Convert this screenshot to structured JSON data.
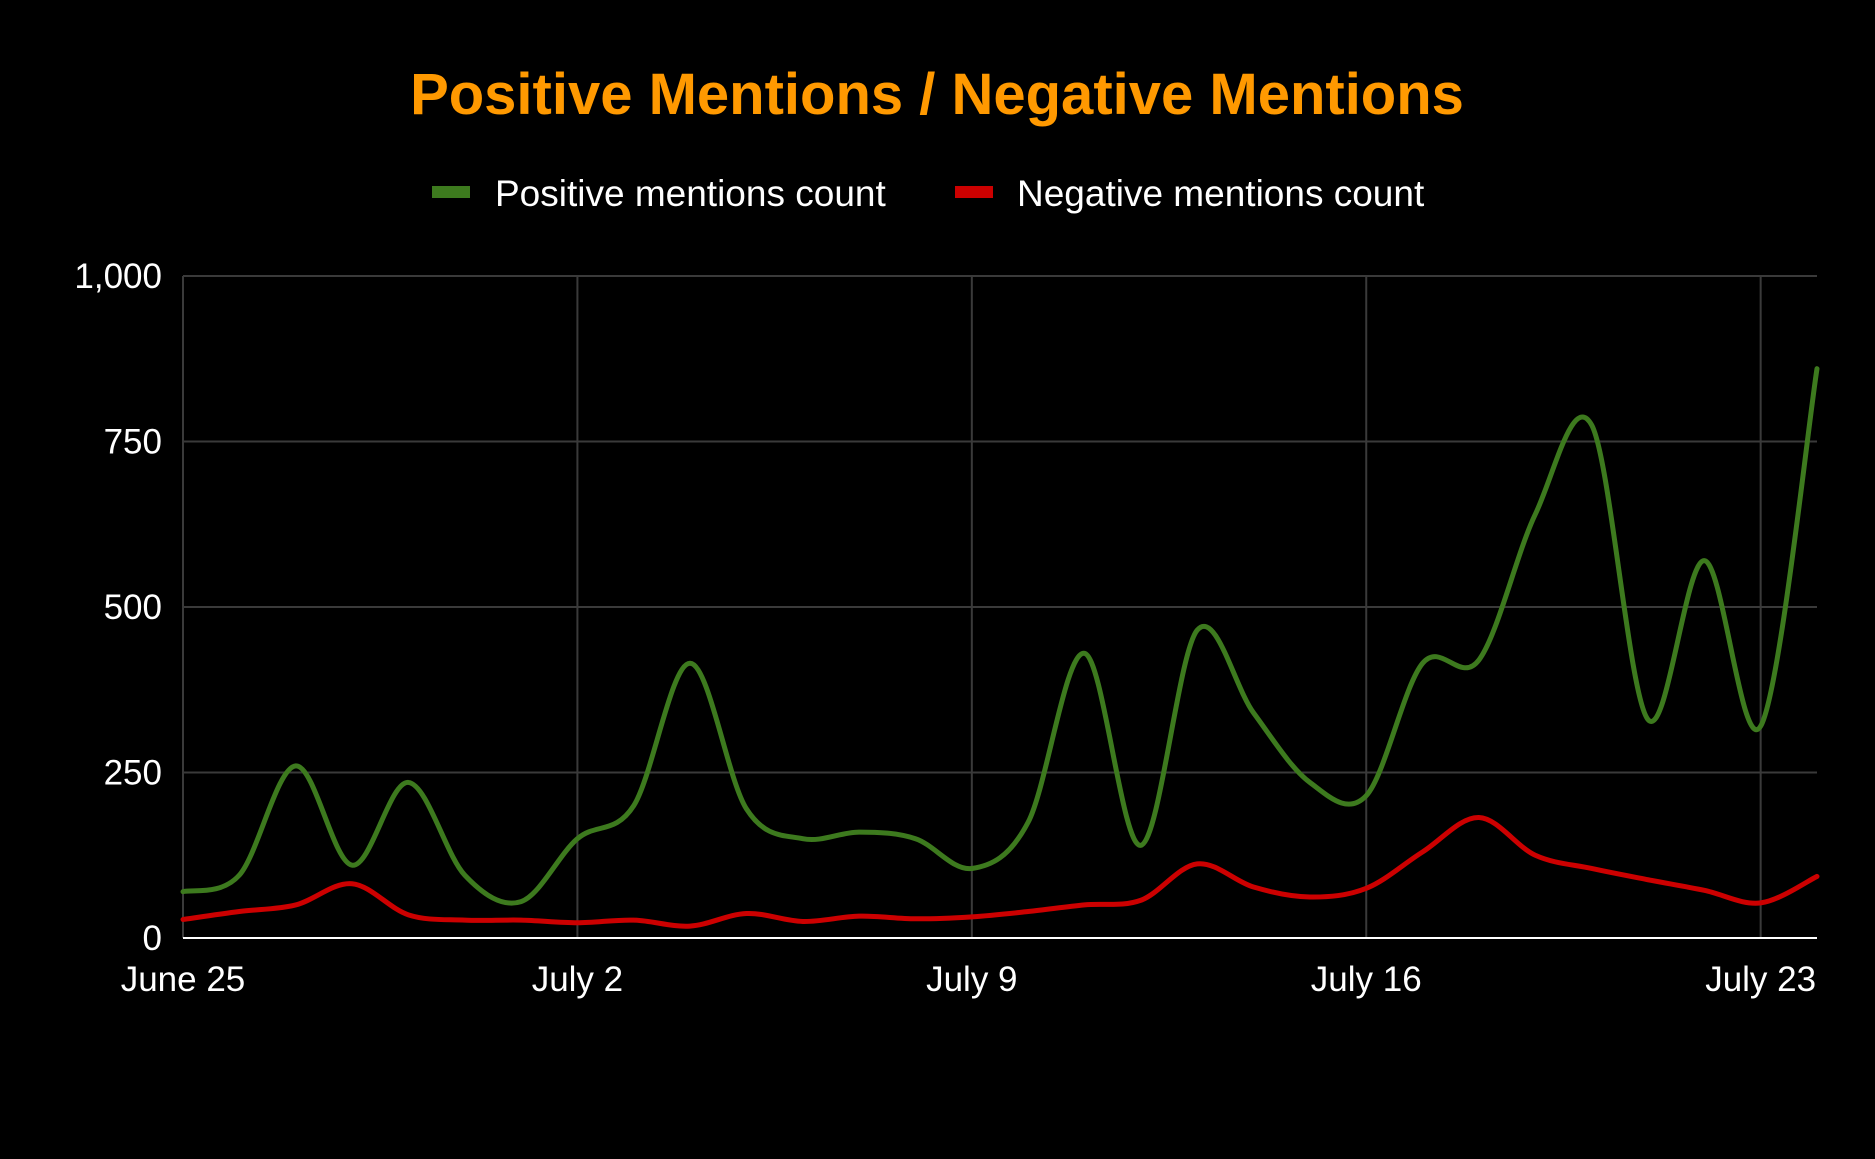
{
  "chart_data": {
    "type": "line",
    "title": "Positive Mentions / Negative Mentions",
    "xlabel": "",
    "ylabel": "",
    "x": [
      "2023-06-25",
      "2023-06-26",
      "2023-06-27",
      "2023-06-28",
      "2023-06-29",
      "2023-06-30",
      "2023-07-01",
      "2023-07-02",
      "2023-07-03",
      "2023-07-04",
      "2023-07-05",
      "2023-07-06",
      "2023-07-07",
      "2023-07-08",
      "2023-07-09",
      "2023-07-10",
      "2023-07-11",
      "2023-07-12",
      "2023-07-13",
      "2023-07-14",
      "2023-07-15",
      "2023-07-16",
      "2023-07-17",
      "2023-07-18",
      "2023-07-19",
      "2023-07-20",
      "2023-07-21",
      "2023-07-22",
      "2023-07-23",
      "2023-07-24"
    ],
    "xticks": [
      {
        "date": "2023-06-25",
        "label": "June 25"
      },
      {
        "date": "2023-07-02",
        "label": "July 2"
      },
      {
        "date": "2023-07-09",
        "label": "July 9"
      },
      {
        "date": "2023-07-16",
        "label": "July 16"
      },
      {
        "date": "2023-07-23",
        "label": "July 23"
      }
    ],
    "yticks": [
      {
        "value": 0,
        "label": "0"
      },
      {
        "value": 250,
        "label": "250"
      },
      {
        "value": 500,
        "label": "500"
      },
      {
        "value": 750,
        "label": "750"
      },
      {
        "value": 1000,
        "label": "1,000"
      }
    ],
    "ylim": [
      0,
      1000
    ],
    "grid": true,
    "legend_position": "top",
    "series": [
      {
        "name": "Positive mentions count",
        "color": "#3d7a1e",
        "values": [
          70,
          95,
          260,
          110,
          235,
          95,
          55,
          150,
          200,
          415,
          195,
          150,
          160,
          150,
          105,
          175,
          430,
          140,
          465,
          340,
          235,
          215,
          415,
          420,
          640,
          775,
          330,
          570,
          320,
          860
        ]
      },
      {
        "name": "Negative mentions count",
        "color": "#cc0000",
        "values": [
          28,
          40,
          50,
          82,
          35,
          27,
          27,
          23,
          27,
          18,
          37,
          25,
          33,
          29,
          32,
          40,
          50,
          57,
          112,
          77,
          62,
          75,
          130,
          182,
          125,
          105,
          88,
          72,
          53,
          93
        ]
      }
    ]
  },
  "colors": {
    "background": "#000000",
    "title": "#ff9900",
    "text": "#ffffff",
    "grid": "#3a3a3a",
    "axis": "#ffffff"
  }
}
